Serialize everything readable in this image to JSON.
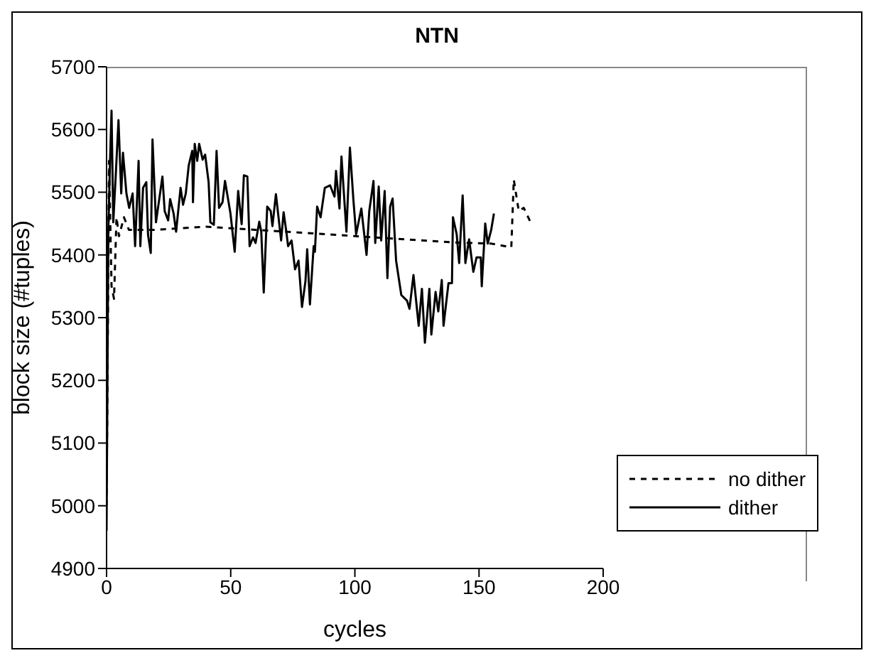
{
  "chart_data": {
    "type": "line",
    "title": "NTN",
    "xlabel": "cycles",
    "ylabel": "block size (#tuples)",
    "xlim": [
      0,
      200
    ],
    "xticks": [
      0,
      50,
      100,
      150,
      200
    ],
    "ylim": [
      4900,
      5700
    ],
    "yticks": [
      4900,
      5000,
      5100,
      5200,
      5300,
      5400,
      5500,
      5600,
      5700
    ],
    "grid": false,
    "legend": "bottom right",
    "marker": "none",
    "series": [
      {
        "name": "no dither",
        "color": "#000000",
        "line_style": "dashed",
        "x": [
          0,
          1,
          2,
          3,
          4,
          5,
          7,
          9,
          20,
          40,
          60,
          80,
          100,
          120,
          140,
          155,
          163,
          164,
          166,
          168,
          171
        ],
        "values": [
          5000,
          5550,
          5350,
          5330,
          5460,
          5430,
          5460,
          5440,
          5440,
          5445,
          5440,
          5435,
          5430,
          5425,
          5420,
          5418,
          5412,
          5520,
          5470,
          5475,
          5450
        ]
      },
      {
        "name": "dither",
        "color": "#000000",
        "line_style": "solid",
        "x": [
          0,
          0.7,
          1.4,
          2,
          2.7,
          3.8,
          4.8,
          5.9,
          6.6,
          8,
          9.1,
          10.5,
          11.5,
          12.9,
          13.6,
          14.7,
          16,
          16.7,
          17.8,
          18.5,
          19.9,
          22.5,
          23.4,
          24.8,
          25.6,
          27,
          28,
          29.8,
          30.8,
          31.9,
          33.1,
          34.5,
          34.8,
          35.5,
          36.5,
          37.3,
          38.7,
          39.7,
          41.1,
          41.8,
          43.2,
          44.3,
          45.3,
          46.7,
          47.7,
          49.9,
          51.6,
          53,
          54.4,
          55.3,
          56.7,
          57.6,
          59,
          60,
          61.5,
          62.3,
          63.3,
          64.7,
          66.1,
          66.8,
          68.2,
          70.3,
          71.3,
          72.4,
          73.1,
          74.5,
          75.9,
          77.3,
          78.7,
          80.1,
          80.8,
          81.9,
          83.4,
          83.9,
          84.8,
          86.2,
          87.9,
          90,
          91.8,
          92.4,
          93.8,
          94.6,
          96.6,
          98,
          99.4,
          100.5,
          102.6,
          104.7,
          105.8,
          107.5,
          108.2,
          109.6,
          110.6,
          112,
          113.1,
          114.2,
          115.2,
          116.6,
          118.7,
          121,
          122,
          123.6,
          125.7,
          127,
          128.2,
          130,
          130.8,
          132.5,
          133.6,
          135,
          135.7,
          137.7,
          139.1,
          139.5,
          141,
          142,
          143.4,
          144.5,
          146,
          147.7,
          149,
          150.7,
          151.1,
          152.5,
          153.5,
          154.9,
          156
        ],
        "values": [
          4960,
          5437,
          5550,
          5630,
          5452,
          5535,
          5615,
          5498,
          5563,
          5498,
          5475,
          5498,
          5414,
          5550,
          5414,
          5507,
          5516,
          5432,
          5403,
          5584,
          5452,
          5525,
          5470,
          5455,
          5489,
          5466,
          5437,
          5507,
          5480,
          5498,
          5543,
          5566,
          5484,
          5577,
          5550,
          5577,
          5552,
          5560,
          5516,
          5452,
          5448,
          5566,
          5475,
          5484,
          5518,
          5466,
          5405,
          5502,
          5449,
          5527,
          5525,
          5414,
          5428,
          5419,
          5453,
          5437,
          5340,
          5477,
          5470,
          5446,
          5497,
          5423,
          5468,
          5437,
          5414,
          5423,
          5377,
          5391,
          5317,
          5358,
          5409,
          5321,
          5414,
          5405,
          5477,
          5460,
          5507,
          5511,
          5493,
          5534,
          5474,
          5557,
          5437,
          5571,
          5488,
          5433,
          5474,
          5400,
          5470,
          5518,
          5419,
          5509,
          5423,
          5502,
          5363,
          5477,
          5490,
          5391,
          5336,
          5327,
          5314,
          5368,
          5287,
          5346,
          5260,
          5346,
          5273,
          5341,
          5310,
          5360,
          5287,
          5355,
          5355,
          5460,
          5433,
          5387,
          5495,
          5387,
          5425,
          5373,
          5396,
          5396,
          5350,
          5450,
          5418,
          5440,
          5466
        ]
      }
    ]
  }
}
